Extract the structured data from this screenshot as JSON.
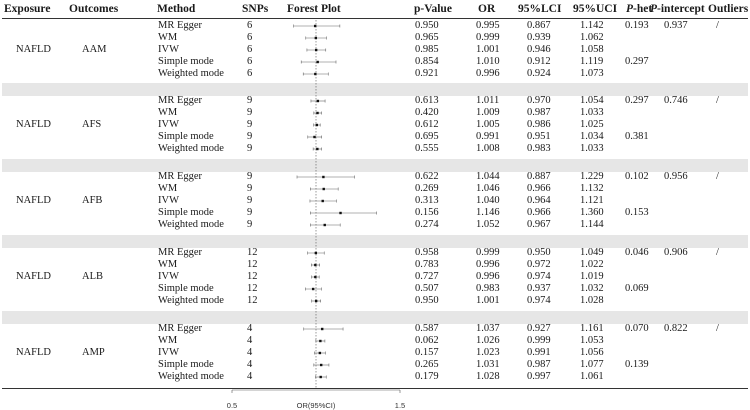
{
  "headers": {
    "exposure": "Exposure",
    "outcomes": "Outcomes",
    "method": "Method",
    "snps": "SNPs",
    "forest": "Forest Plot",
    "pvalue": "p-Value",
    "or": "OR",
    "lci": "95%LCI",
    "uci": "95%UCI",
    "phet_p": "P",
    "phet_rest": "-het",
    "pint_p": "P",
    "pint_rest": "-intercept",
    "outliers": "Outliers"
  },
  "axis": {
    "min": 0.5,
    "max": 1.5,
    "ref": 1.0,
    "min_label": "0.5",
    "max_label": "1.5",
    "label": "OR(95%CI)"
  },
  "groups": [
    {
      "exposure": "NAFLD",
      "outcome": "AAM",
      "p_het": [
        "0.193",
        "0.297"
      ],
      "p_intercept": "0.937",
      "outliers": "/",
      "rows": [
        {
          "method": "MR Egger",
          "snps": "6",
          "p": "0.950",
          "or": "0.995",
          "lci": "0.867",
          "uci": "1.142"
        },
        {
          "method": "WM",
          "snps": "6",
          "p": "0.965",
          "or": "0.999",
          "lci": "0.939",
          "uci": "1.062"
        },
        {
          "method": "IVW",
          "snps": "6",
          "p": "0.985",
          "or": "1.001",
          "lci": "0.946",
          "uci": "1.058"
        },
        {
          "method": "Simple mode",
          "snps": "6",
          "p": "0.854",
          "or": "1.010",
          "lci": "0.912",
          "uci": "1.119"
        },
        {
          "method": "Weighted mode",
          "snps": "6",
          "p": "0.921",
          "or": "0.996",
          "lci": "0.924",
          "uci": "1.073"
        }
      ]
    },
    {
      "exposure": "NAFLD",
      "outcome": "AFS",
      "p_het": [
        "0.297",
        "0.381"
      ],
      "p_intercept": "0.746",
      "outliers": "/",
      "rows": [
        {
          "method": "MR Egger",
          "snps": "9",
          "p": "0.613",
          "or": "1.011",
          "lci": "0.970",
          "uci": "1.054"
        },
        {
          "method": "WM",
          "snps": "9",
          "p": "0.420",
          "or": "1.009",
          "lci": "0.987",
          "uci": "1.033"
        },
        {
          "method": "IVW",
          "snps": "9",
          "p": "0.612",
          "or": "1.005",
          "lci": "0.986",
          "uci": "1.025"
        },
        {
          "method": "Simple mode",
          "snps": "9",
          "p": "0.695",
          "or": "0.991",
          "lci": "0.951",
          "uci": "1.034"
        },
        {
          "method": "Weighted mode",
          "snps": "9",
          "p": "0.555",
          "or": "1.008",
          "lci": "0.983",
          "uci": "1.033"
        }
      ]
    },
    {
      "exposure": "NAFLD",
      "outcome": "AFB",
      "p_het": [
        "0.102",
        "0.153"
      ],
      "p_intercept": "0.956",
      "outliers": "/",
      "rows": [
        {
          "method": "MR Egger",
          "snps": "9",
          "p": "0.622",
          "or": "1.044",
          "lci": "0.887",
          "uci": "1.229"
        },
        {
          "method": "WM",
          "snps": "9",
          "p": "0.269",
          "or": "1.046",
          "lci": "0.966",
          "uci": "1.132"
        },
        {
          "method": "IVW",
          "snps": "9",
          "p": "0.313",
          "or": "1.040",
          "lci": "0.964",
          "uci": "1.121"
        },
        {
          "method": "Simple mode",
          "snps": "9",
          "p": "0.156",
          "or": "1.146",
          "lci": "0.966",
          "uci": "1.360"
        },
        {
          "method": "Weighted mode",
          "snps": "9",
          "p": "0.274",
          "or": "1.052",
          "lci": "0.967",
          "uci": "1.144"
        }
      ]
    },
    {
      "exposure": "NAFLD",
      "outcome": "ALB",
      "p_het": [
        "0.046",
        "0.069"
      ],
      "p_intercept": "0.906",
      "outliers": "/",
      "rows": [
        {
          "method": "MR Egger",
          "snps": "12",
          "p": "0.958",
          "or": "0.999",
          "lci": "0.950",
          "uci": "1.049"
        },
        {
          "method": "WM",
          "snps": "12",
          "p": "0.783",
          "or": "0.996",
          "lci": "0.972",
          "uci": "1.022"
        },
        {
          "method": "IVW",
          "snps": "12",
          "p": "0.727",
          "or": "0.996",
          "lci": "0.974",
          "uci": "1.019"
        },
        {
          "method": "Simple mode",
          "snps": "12",
          "p": "0.507",
          "or": "0.983",
          "lci": "0.937",
          "uci": "1.032"
        },
        {
          "method": "Weighted mode",
          "snps": "12",
          "p": "0.950",
          "or": "1.001",
          "lci": "0.974",
          "uci": "1.028"
        }
      ]
    },
    {
      "exposure": "NAFLD",
      "outcome": "AMP",
      "p_het": [
        "0.070",
        "0.139"
      ],
      "p_intercept": "0.822",
      "outliers": "/",
      "rows": [
        {
          "method": "MR Egger",
          "snps": "4",
          "p": "0.587",
          "or": "1.037",
          "lci": "0.927",
          "uci": "1.161"
        },
        {
          "method": "WM",
          "snps": "4",
          "p": "0.062",
          "or": "1.026",
          "lci": "0.999",
          "uci": "1.053"
        },
        {
          "method": "IVW",
          "snps": "4",
          "p": "0.157",
          "or": "1.023",
          "lci": "0.991",
          "uci": "1.056"
        },
        {
          "method": "Simple mode",
          "snps": "4",
          "p": "0.265",
          "or": "1.031",
          "lci": "0.987",
          "uci": "1.077"
        },
        {
          "method": "Weighted mode",
          "snps": "4",
          "p": "0.179",
          "or": "1.028",
          "lci": "0.997",
          "uci": "1.061"
        }
      ]
    }
  ]
}
